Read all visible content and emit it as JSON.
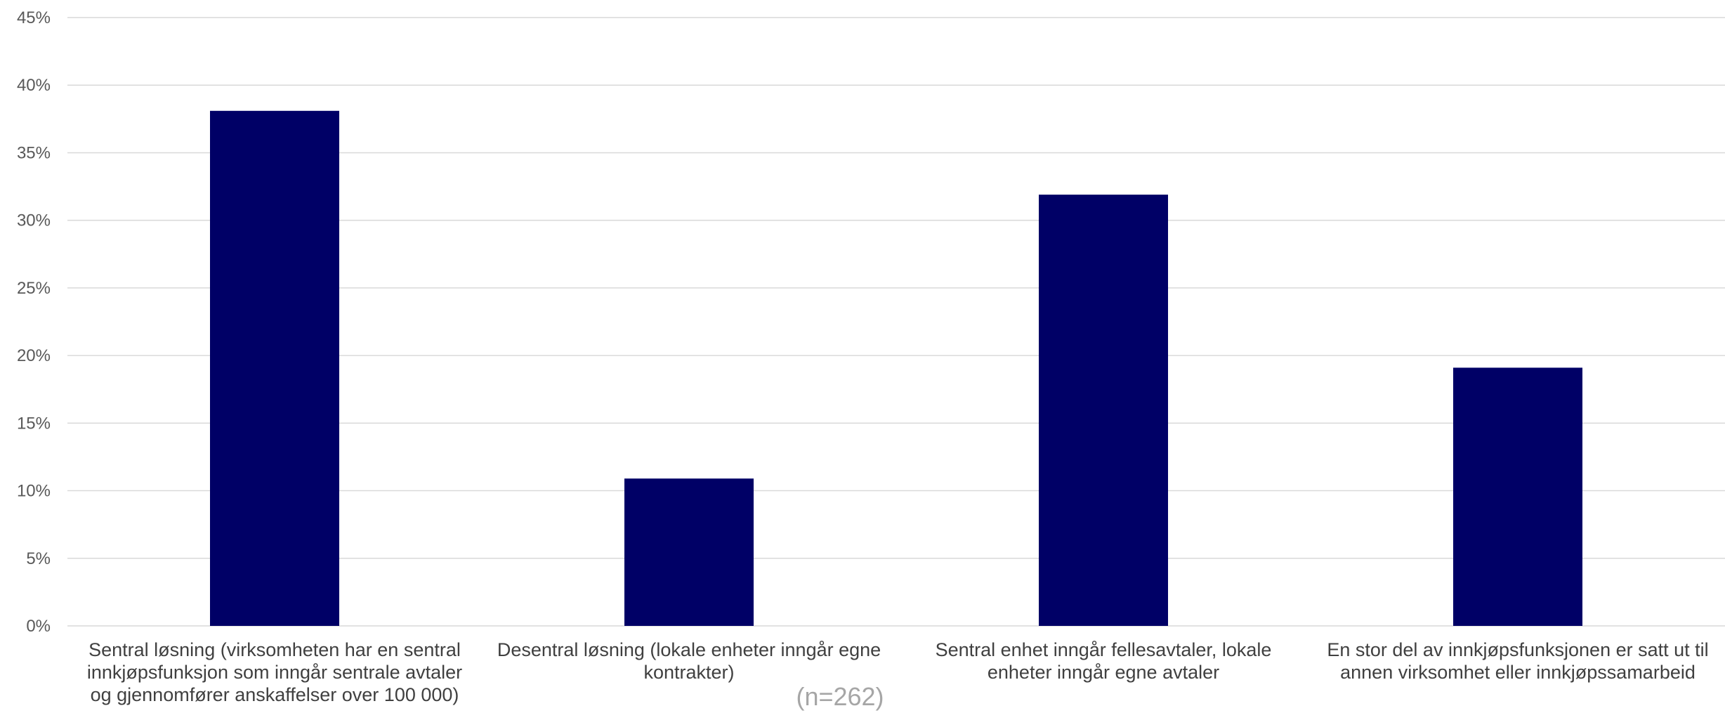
{
  "chart_data": {
    "type": "bar",
    "categories": [
      [
        "Sentral løsning (virksomheten har en sentral",
        "innkjøpsfunksjon som inngår sentrale avtaler",
        "og gjennomfører anskaffelser over 100 000)"
      ],
      [
        "Desentral løsning (lokale enheter inngår egne",
        "kontrakter)"
      ],
      [
        "Sentral enhet inngår fellesavtaler, lokale",
        "enheter inngår egne avtaler"
      ],
      [
        "En stor del av innkjøpsfunksjonen er satt ut til",
        "annen virksomhet eller innkjøpssamarbeid"
      ]
    ],
    "values": [
      38.1,
      10.9,
      31.9,
      19.1
    ],
    "ylim": [
      0,
      45
    ],
    "yticks": [
      0,
      5,
      10,
      15,
      20,
      25,
      30,
      35,
      40,
      45
    ],
    "ytick_suffix": "%",
    "grid": true,
    "bar_color": "#000066",
    "note": "(n=262)"
  }
}
